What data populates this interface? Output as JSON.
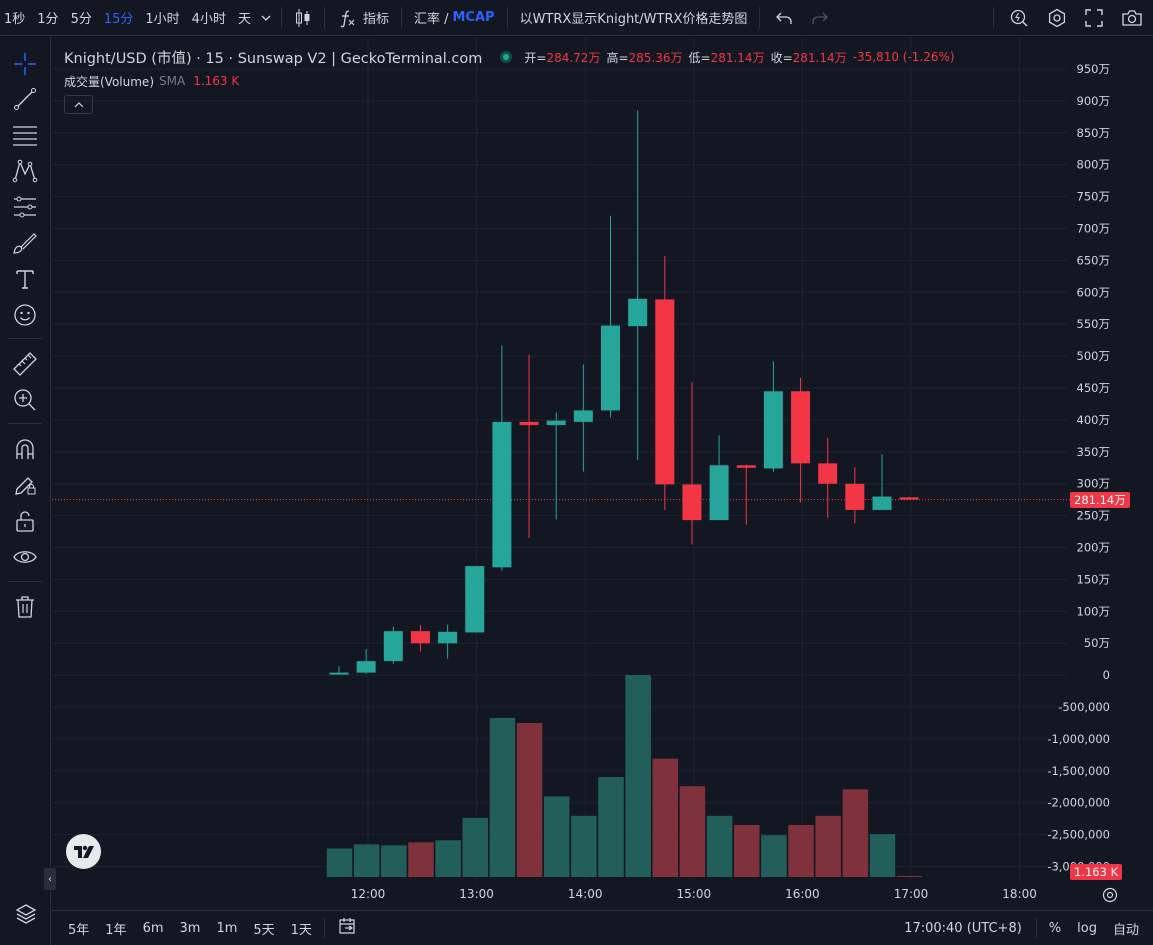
{
  "toolbar": {
    "intervals": [
      "1秒",
      "1分",
      "5分",
      "15分",
      "1小时",
      "4小时",
      "天"
    ],
    "active_interval": "15分",
    "indicators_label": "指标",
    "rate_label": "汇率 /",
    "mcap_label": "MCAP",
    "pair_toggle_label": "以WTRX显示Knight/WTRX价格走势图"
  },
  "legend": {
    "title": "Knight/USD (市值) · 15 · Sunswap V2 | GeckoTerminal.com",
    "open_key": "开=",
    "open": "284.72万",
    "high_key": "高=",
    "high": "285.36万",
    "low_key": "低=",
    "low": "281.14万",
    "close_key": "收=",
    "close": "281.14万",
    "change": "-35,810 (-1.26%)"
  },
  "volume_legend": {
    "name": "成交量(Volume)",
    "sma": "SMA",
    "value": "1.163 K"
  },
  "price_axis_labels": [
    "950万",
    "900万",
    "850万",
    "800万",
    "750万",
    "700万",
    "650万",
    "600万",
    "550万",
    "500万",
    "450万",
    "400万",
    "350万",
    "300万",
    "250万",
    "200万",
    "150万",
    "100万",
    "50万",
    "0",
    "-500,000",
    "-1,000,000",
    "-1,500,000",
    "-2,000,000",
    "-2,500,000",
    "-3,000,000"
  ],
  "last_price_tag": "281.14万",
  "volume_tag": "1.163 K",
  "time_axis_labels": [
    "12:00",
    "13:00",
    "14:00",
    "15:00",
    "16:00",
    "17:00",
    "18:00"
  ],
  "bottom": {
    "ranges": [
      "5年",
      "1年",
      "6m",
      "3m",
      "1m",
      "5天",
      "1天"
    ],
    "clock": "17:00:40 (UTC+8)",
    "percent": "%",
    "log": "log",
    "auto": "自动"
  },
  "colors": {
    "up": "#26a69a",
    "down": "#f23645",
    "up_vol": "#225f5a",
    "down_vol": "#7f323b",
    "bg": "#131722",
    "grid": "#1f2330"
  },
  "chart_data": {
    "type": "candlestick",
    "unit": "万",
    "interval": "15分",
    "x": [
      "11:45",
      "12:00",
      "12:15",
      "12:30",
      "12:45",
      "13:00",
      "13:15",
      "13:30",
      "13:45",
      "14:00",
      "14:15",
      "14:30",
      "14:45",
      "15:00",
      "15:15",
      "15:30",
      "15:45",
      "16:00",
      "16:15",
      "16:30",
      "16:45",
      "17:00"
    ],
    "ohlc": [
      [
        10,
        20,
        8,
        10
      ],
      [
        10,
        47,
        8,
        28
      ],
      [
        28,
        82,
        24,
        75
      ],
      [
        75,
        85,
        43,
        56
      ],
      [
        56,
        85,
        32,
        74
      ],
      [
        73,
        177,
        73,
        177
      ],
      [
        175,
        523,
        170,
        403
      ],
      [
        403,
        508,
        221,
        398
      ],
      [
        398,
        418,
        250,
        405
      ],
      [
        403,
        493,
        325,
        421
      ],
      [
        421,
        726,
        410,
        554
      ],
      [
        553,
        891,
        343,
        596
      ],
      [
        595,
        663,
        265,
        305
      ],
      [
        305,
        465,
        211,
        249
      ],
      [
        249,
        382,
        249,
        335
      ],
      [
        335,
        336,
        242,
        331
      ],
      [
        330,
        498,
        325,
        451
      ],
      [
        451,
        472,
        277,
        338
      ],
      [
        338,
        378,
        252,
        306
      ],
      [
        306,
        332,
        244,
        265
      ],
      [
        265,
        352,
        265,
        286
      ],
      [
        284.72,
        285.36,
        281.14,
        281.14
      ]
    ],
    "volume_label": "成交量(Volume)",
    "volume_scale_note": "relative",
    "volume": [
      0.28,
      0.32,
      0.31,
      0.34,
      0.36,
      0.58,
      1.56,
      1.51,
      0.79,
      0.6,
      0.98,
      1.98,
      1.16,
      0.89,
      0.6,
      0.51,
      0.41,
      0.51,
      0.6,
      0.86,
      0.42,
      0.01
    ],
    "ylim": [
      0,
      950
    ],
    "xlabels_shown": [
      "12:00",
      "13:00",
      "14:00",
      "15:00",
      "16:00",
      "17:00",
      "18:00"
    ],
    "last_close": 281.14
  }
}
